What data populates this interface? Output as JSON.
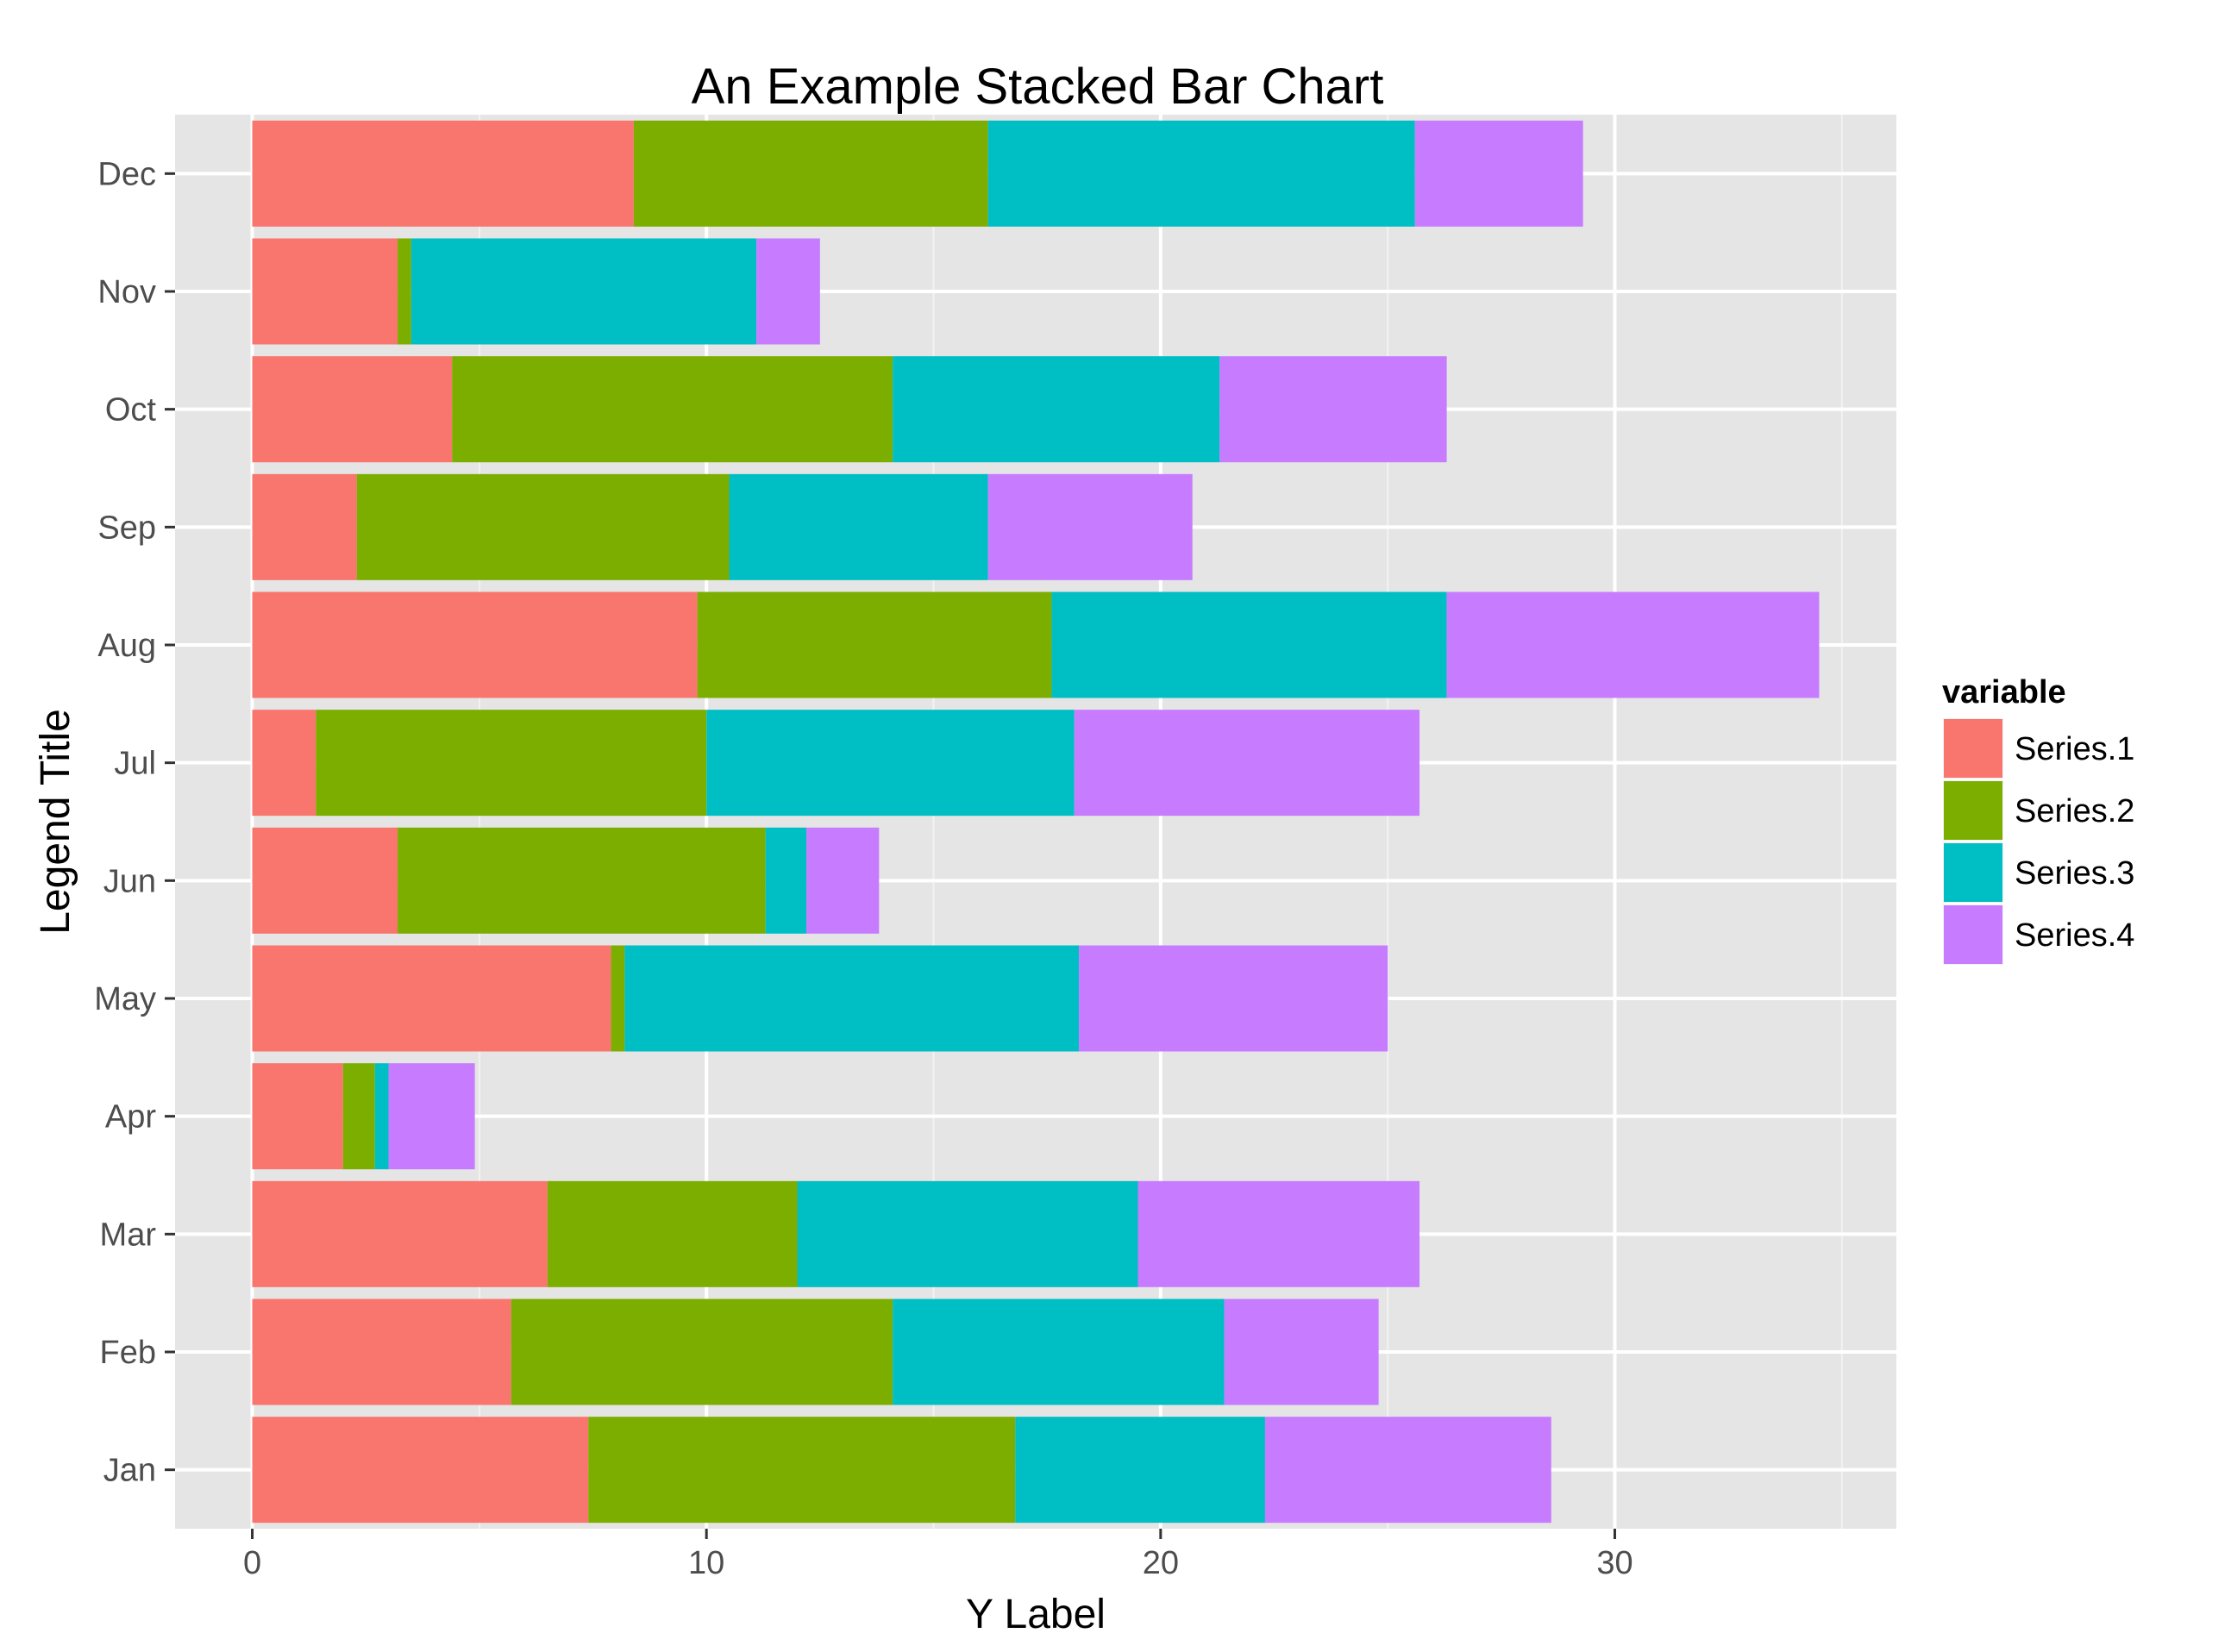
{
  "chart_data": {
    "type": "bar",
    "orientation": "horizontal",
    "stacked": true,
    "title": "An Example Stacked Bar Chart",
    "xlabel": "Y Label",
    "ylabel": "Legend Title",
    "xlim": [
      -1.7,
      36.2
    ],
    "xticks": [
      0,
      10,
      20,
      30
    ],
    "grid": true,
    "legend_position": "right",
    "legend_title": "variable",
    "categories": [
      "Jan",
      "Feb",
      "Mar",
      "Apr",
      "May",
      "Jun",
      "Jul",
      "Aug",
      "Sep",
      "Oct",
      "Nov",
      "Dec"
    ],
    "series": [
      {
        "name": "Series.1",
        "color": "#F8766D",
        "values": [
          7.4,
          5.7,
          6.5,
          2.0,
          7.9,
          3.2,
          1.4,
          9.8,
          2.3,
          4.4,
          3.2,
          8.4
        ]
      },
      {
        "name": "Series.2",
        "color": "#7CAE00",
        "values": [
          9.4,
          8.4,
          5.5,
          0.7,
          0.3,
          8.1,
          8.6,
          7.8,
          8.2,
          9.7,
          0.3,
          7.8
        ]
      },
      {
        "name": "Series.3",
        "color": "#00BFC4",
        "values": [
          5.5,
          7.3,
          7.5,
          0.3,
          10.0,
          0.9,
          8.1,
          8.7,
          5.7,
          7.2,
          7.6,
          9.4
        ]
      },
      {
        "name": "Series.4",
        "color": "#C77CFF",
        "values": [
          6.3,
          3.4,
          6.2,
          1.9,
          6.8,
          1.6,
          7.6,
          8.2,
          4.5,
          5.0,
          1.4,
          3.7
        ]
      }
    ]
  }
}
